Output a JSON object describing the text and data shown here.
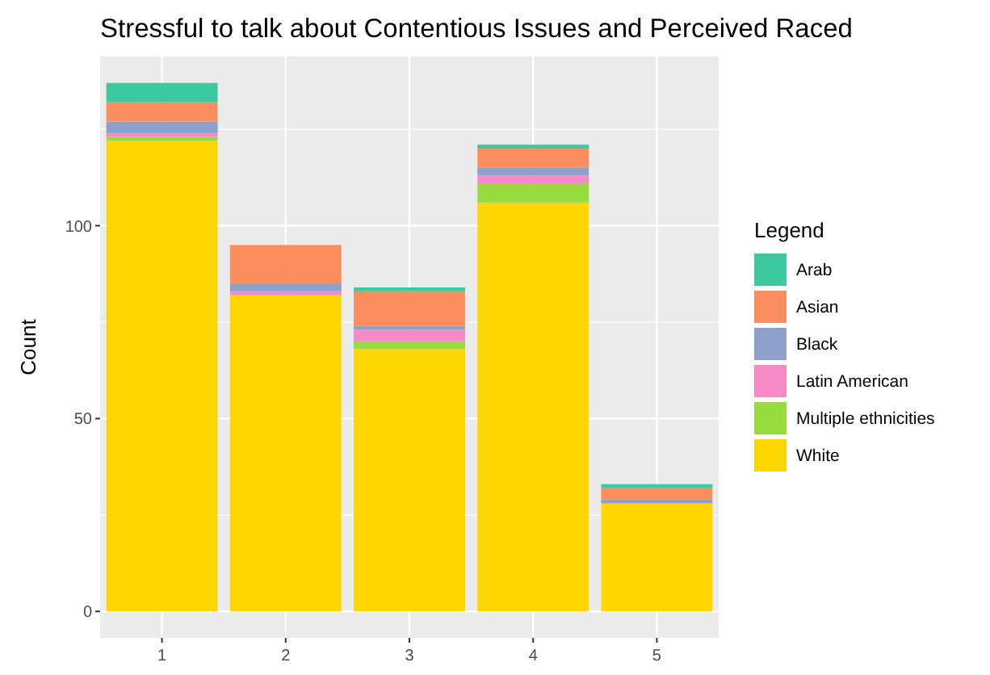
{
  "chart_data": {
    "type": "bar",
    "title": "Stressful to talk about Contentious Issues and Perceived Raced",
    "xlabel": null,
    "ylabel": "Count",
    "legend_title": "Legend",
    "stacked": true,
    "categories": [
      "1",
      "2",
      "3",
      "4",
      "5"
    ],
    "series": [
      {
        "name": "White",
        "color": "#ffd700",
        "values": [
          122,
          82,
          68,
          106,
          28
        ]
      },
      {
        "name": "Multiple ethnicities",
        "color": "#96dc3c",
        "values": [
          1,
          0,
          2,
          5,
          0
        ]
      },
      {
        "name": "Latin American",
        "color": "#f58ac6",
        "values": [
          1,
          1,
          3,
          2,
          0
        ]
      },
      {
        "name": "Black",
        "color": "#8da0cb",
        "values": [
          3,
          2,
          1,
          2,
          1
        ]
      },
      {
        "name": "Asian",
        "color": "#fc8d5c",
        "values": [
          5,
          10,
          9,
          5,
          3
        ]
      },
      {
        "name": "Arab",
        "color": "#3ec8a0",
        "values": [
          5,
          0,
          1,
          1,
          1
        ]
      }
    ],
    "ylim": [
      -6.85,
      143.85
    ],
    "yticks": [
      0,
      {
        "value": 25,
        "label": null
      },
      50,
      {
        "value": 75,
        "label": null
      },
      100,
      {
        "value": 125,
        "label": null
      }
    ],
    "grid": true,
    "legend": "right"
  }
}
